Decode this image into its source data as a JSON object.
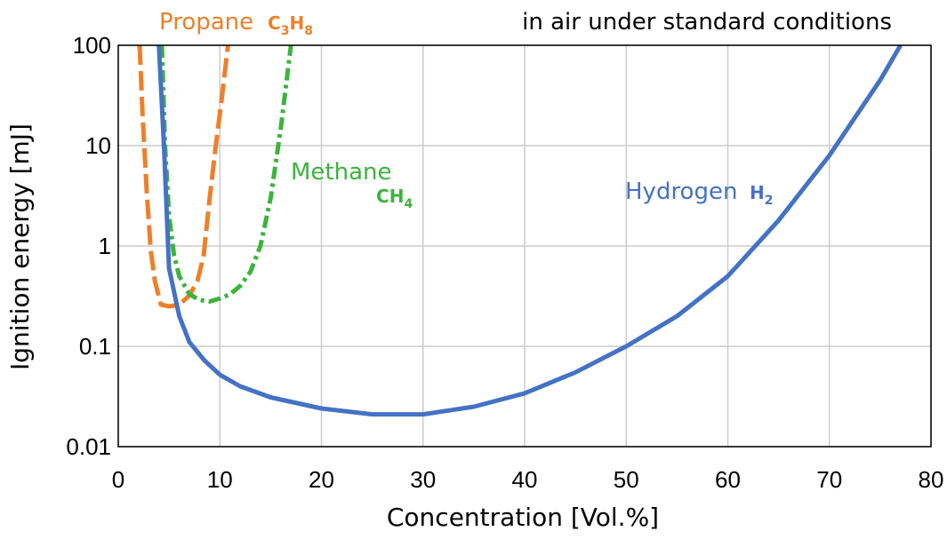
{
  "chart_data": {
    "type": "line",
    "title": "in air under standard conditions",
    "xlabel": "Concentration [Vol.%]",
    "ylabel": "Ignition energy [mJ]",
    "xlim": [
      0,
      80
    ],
    "ylim": [
      0.01,
      100
    ],
    "yscale": "log",
    "grid": true,
    "xticks": [
      "0",
      "10",
      "20",
      "30",
      "40",
      "50",
      "60",
      "70",
      "80"
    ],
    "yticks": [
      "0.01",
      "0.1",
      "1",
      "10",
      "100"
    ],
    "series": [
      {
        "key": "propane",
        "label_name": "Propane",
        "label_formula": {
          "base": "C",
          "sub1": "3",
          "mid": "H",
          "sub2": "8"
        },
        "color": "#ef7f29",
        "style": "dashed",
        "x": [
          2.1,
          2.4,
          2.8,
          3.2,
          3.6,
          4.2,
          5,
          6,
          7,
          7.8,
          8.4,
          9,
          9.6,
          10.2,
          10.8
        ],
        "y": [
          100,
          20,
          3.5,
          0.9,
          0.45,
          0.26,
          0.25,
          0.26,
          0.32,
          0.45,
          0.8,
          3.0,
          10,
          30,
          100
        ]
      },
      {
        "key": "methane",
        "label_name": "Methane",
        "label_formula": {
          "base": "C",
          "sub1": "",
          "mid": "H",
          "sub2": "4"
        },
        "color": "#3cb43c",
        "style": "dashdot",
        "x": [
          4.3,
          4.6,
          5,
          5.5,
          6,
          7,
          8,
          9,
          10,
          11,
          12,
          13,
          14,
          15,
          16,
          17
        ],
        "y": [
          100,
          10,
          2,
          0.8,
          0.5,
          0.33,
          0.29,
          0.28,
          0.3,
          0.33,
          0.4,
          0.55,
          1.0,
          3.0,
          15,
          100
        ]
      },
      {
        "key": "hydrogen",
        "label_name": "Hydrogen",
        "label_formula": {
          "base": "H",
          "sub1": "2",
          "mid": "",
          "sub2": ""
        },
        "color": "#4472c4",
        "style": "solid",
        "x": [
          4.0,
          4.5,
          5,
          6,
          7,
          8.5,
          10,
          12,
          15,
          20,
          25,
          30,
          35,
          40,
          45,
          50,
          55,
          60,
          65,
          70,
          75,
          77
        ],
        "y": [
          100,
          10,
          0.6,
          0.2,
          0.11,
          0.072,
          0.052,
          0.04,
          0.031,
          0.024,
          0.021,
          0.021,
          0.025,
          0.034,
          0.055,
          0.1,
          0.2,
          0.5,
          1.8,
          8,
          45,
          100
        ]
      }
    ]
  }
}
